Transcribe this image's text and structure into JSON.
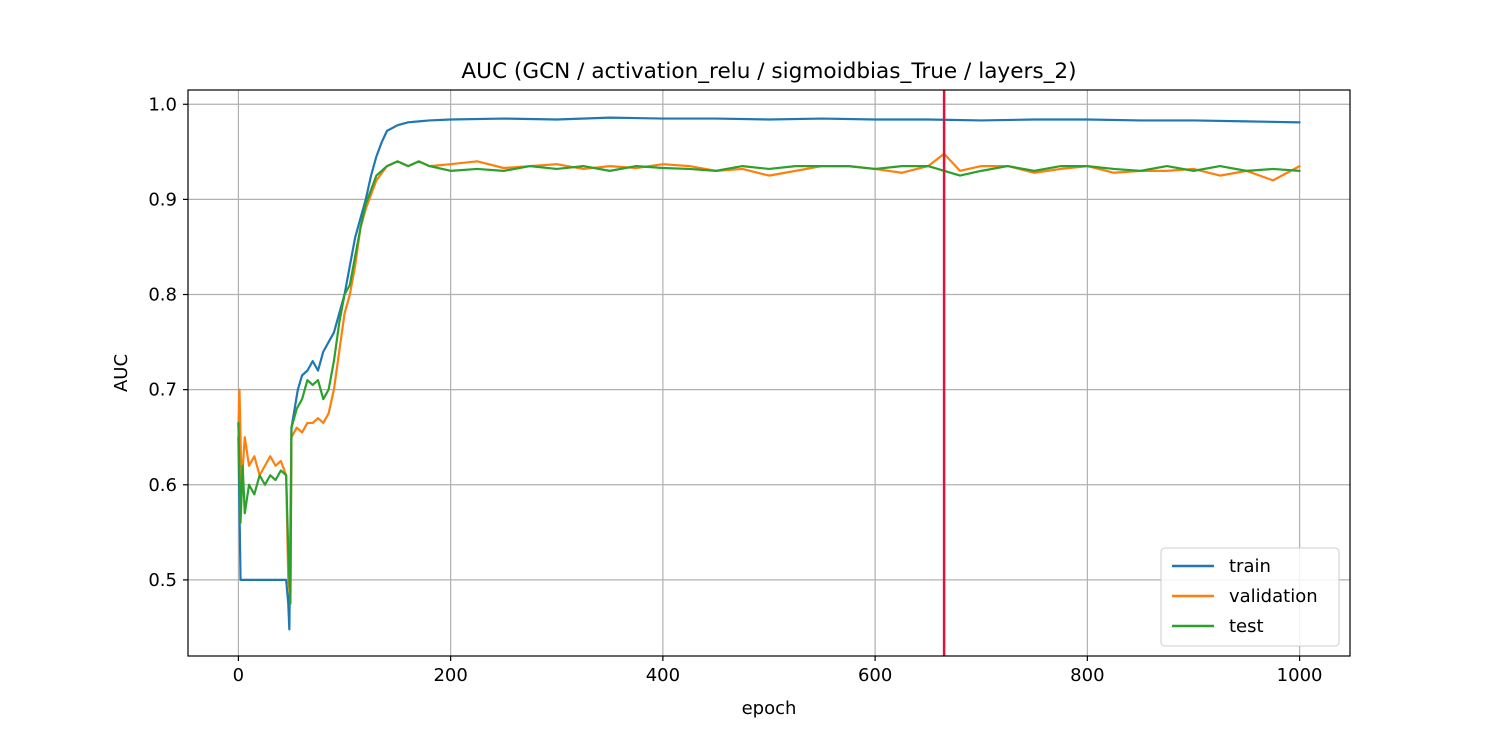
{
  "chart_data": {
    "type": "line",
    "title": "AUC (GCN / activation_relu / sigmoidbias_True / layers_2)",
    "xlabel": "epoch",
    "ylabel": "AUC",
    "xlim": [
      -47.5,
      1047.5
    ],
    "ylim": [
      0.42,
      1.015
    ],
    "xticks": [
      0,
      200,
      400,
      600,
      800,
      1000
    ],
    "yticks": [
      0.5,
      0.6,
      0.7,
      0.8,
      0.9,
      1.0
    ],
    "xtick_labels": [
      "0",
      "200",
      "400",
      "600",
      "800",
      "1000"
    ],
    "ytick_labels": [
      "0.5",
      "0.6",
      "0.7",
      "0.8",
      "0.9",
      "1.0"
    ],
    "grid": true,
    "legend_position": "lower-right",
    "vline": {
      "x": 665,
      "color": "#dc143c"
    },
    "series": [
      {
        "name": "train",
        "color": "#1f77b4",
        "x": [
          0,
          2,
          4,
          10,
          20,
          30,
          40,
          45,
          47,
          48,
          50,
          53,
          56,
          60,
          65,
          70,
          75,
          80,
          85,
          90,
          95,
          100,
          105,
          110,
          115,
          120,
          125,
          130,
          135,
          140,
          150,
          160,
          170,
          180,
          200,
          250,
          300,
          350,
          400,
          450,
          500,
          550,
          600,
          650,
          700,
          750,
          800,
          850,
          900,
          950,
          1000
        ],
        "y": [
          0.65,
          0.5,
          0.5,
          0.5,
          0.5,
          0.5,
          0.5,
          0.5,
          0.475,
          0.448,
          0.66,
          0.68,
          0.7,
          0.715,
          0.72,
          0.73,
          0.72,
          0.74,
          0.75,
          0.76,
          0.78,
          0.8,
          0.83,
          0.86,
          0.88,
          0.9,
          0.925,
          0.945,
          0.96,
          0.972,
          0.978,
          0.981,
          0.982,
          0.983,
          0.984,
          0.985,
          0.984,
          0.986,
          0.985,
          0.985,
          0.984,
          0.985,
          0.984,
          0.984,
          0.983,
          0.984,
          0.984,
          0.983,
          0.983,
          0.982,
          0.981
        ]
      },
      {
        "name": "validation",
        "color": "#ff7f0e",
        "x": [
          0,
          1,
          3,
          6,
          10,
          15,
          20,
          25,
          30,
          35,
          40,
          45,
          47,
          49,
          50,
          55,
          60,
          65,
          70,
          75,
          80,
          85,
          90,
          95,
          100,
          105,
          110,
          115,
          120,
          125,
          130,
          140,
          150,
          160,
          170,
          180,
          200,
          225,
          250,
          275,
          300,
          325,
          350,
          375,
          400,
          425,
          450,
          475,
          500,
          525,
          550,
          575,
          600,
          625,
          650,
          665,
          680,
          700,
          725,
          750,
          775,
          800,
          825,
          850,
          875,
          900,
          925,
          950,
          975,
          1000
        ],
        "y": [
          0.66,
          0.7,
          0.6,
          0.65,
          0.62,
          0.63,
          0.61,
          0.62,
          0.63,
          0.62,
          0.625,
          0.61,
          0.5,
          0.48,
          0.65,
          0.66,
          0.655,
          0.665,
          0.665,
          0.67,
          0.665,
          0.675,
          0.7,
          0.74,
          0.78,
          0.8,
          0.83,
          0.87,
          0.89,
          0.905,
          0.92,
          0.935,
          0.94,
          0.935,
          0.94,
          0.935,
          0.937,
          0.94,
          0.933,
          0.935,
          0.937,
          0.932,
          0.935,
          0.933,
          0.937,
          0.935,
          0.93,
          0.932,
          0.925,
          0.93,
          0.935,
          0.935,
          0.932,
          0.928,
          0.935,
          0.948,
          0.93,
          0.935,
          0.935,
          0.928,
          0.932,
          0.935,
          0.928,
          0.93,
          0.93,
          0.932,
          0.925,
          0.93,
          0.92,
          0.935
        ]
      },
      {
        "name": "test",
        "color": "#2ca02c",
        "x": [
          0,
          2,
          4,
          6,
          10,
          15,
          20,
          25,
          30,
          35,
          40,
          45,
          47,
          49,
          50,
          55,
          60,
          65,
          70,
          75,
          80,
          85,
          90,
          95,
          100,
          105,
          110,
          115,
          120,
          125,
          130,
          140,
          150,
          160,
          170,
          180,
          200,
          225,
          250,
          275,
          300,
          325,
          350,
          375,
          400,
          425,
          450,
          475,
          500,
          525,
          550,
          575,
          600,
          625,
          650,
          665,
          680,
          700,
          725,
          750,
          775,
          800,
          825,
          850,
          875,
          900,
          925,
          950,
          975,
          1000
        ],
        "y": [
          0.665,
          0.56,
          0.62,
          0.57,
          0.6,
          0.59,
          0.61,
          0.6,
          0.61,
          0.605,
          0.615,
          0.61,
          0.53,
          0.475,
          0.66,
          0.68,
          0.69,
          0.71,
          0.705,
          0.71,
          0.69,
          0.7,
          0.73,
          0.77,
          0.8,
          0.81,
          0.84,
          0.87,
          0.895,
          0.91,
          0.925,
          0.935,
          0.94,
          0.935,
          0.94,
          0.935,
          0.93,
          0.932,
          0.93,
          0.935,
          0.932,
          0.935,
          0.93,
          0.935,
          0.933,
          0.932,
          0.93,
          0.935,
          0.932,
          0.935,
          0.935,
          0.935,
          0.932,
          0.935,
          0.935,
          0.93,
          0.925,
          0.93,
          0.935,
          0.93,
          0.935,
          0.935,
          0.932,
          0.93,
          0.935,
          0.93,
          0.935,
          0.93,
          0.932,
          0.93
        ]
      }
    ]
  }
}
